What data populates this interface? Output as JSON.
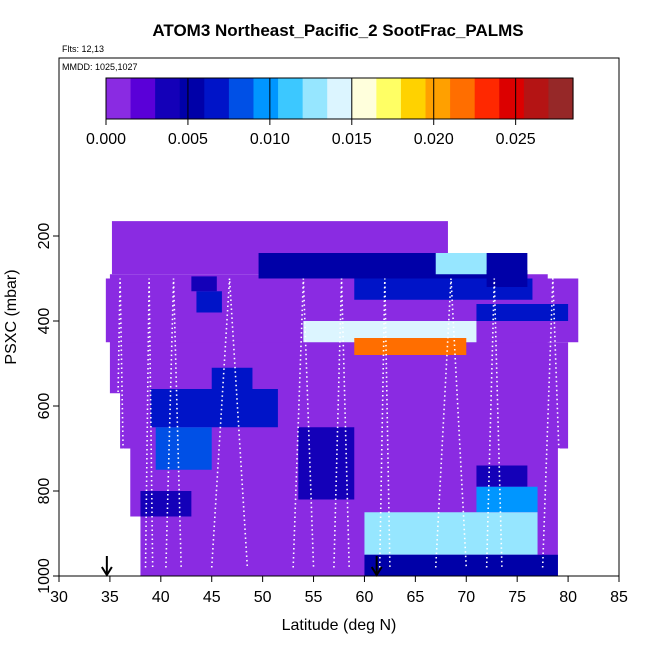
{
  "chart_data": {
    "type": "heatmap",
    "title": "ATOM3 Northeast_Pacific_2 SootFrac_PALMS",
    "flights_label": "Flts: 12,13",
    "mmdd_label": "MMDD: 1025,1027",
    "xlabel": "Latitude (deg N)",
    "ylabel": "PSXC (mbar)",
    "xlim": [
      30,
      85
    ],
    "ylim": [
      1000,
      50
    ],
    "x_ticks": [
      "30",
      "35",
      "40",
      "45",
      "50",
      "55",
      "60",
      "65",
      "70",
      "75",
      "80",
      "85"
    ],
    "x_tick_values": [
      30,
      35,
      40,
      45,
      50,
      55,
      60,
      65,
      70,
      75,
      80,
      85
    ],
    "y_ticks": [
      "200",
      "400",
      "600",
      "800",
      "1000"
    ],
    "y_tick_values": [
      200,
      400,
      600,
      800,
      1000
    ],
    "colorbar": {
      "range": [
        0,
        0.0285
      ],
      "tick_labels": [
        "0.000",
        "0.005",
        "0.010",
        "0.015",
        "0.020",
        "0.025"
      ],
      "tick_values": [
        0,
        0.005,
        0.01,
        0.015,
        0.02,
        0.025
      ],
      "colors": [
        "#8a2be2",
        "#5a00d8",
        "#1400b8",
        "#0000a8",
        "#0014c8",
        "#0050e6",
        "#0096ff",
        "#3cc8ff",
        "#96e6ff",
        "#dcf5ff",
        "#ffffdc",
        "#ffff64",
        "#ffd200",
        "#ffa000",
        "#ff6e00",
        "#ff2800",
        "#dc0000",
        "#b41414",
        "#962828"
      ]
    },
    "markers": [
      {
        "x": 34.7,
        "label": "arrow"
      },
      {
        "x": 61.2,
        "label": "arrow"
      }
    ],
    "background_value": 0.0,
    "cells": [
      {
        "x0": 35.2,
        "x1": 68.2,
        "p0": 165,
        "p1": 290,
        "v": 0.0
      },
      {
        "x0": 35.0,
        "x1": 78.0,
        "p0": 290,
        "p1": 570,
        "v": 0.0
      },
      {
        "x0": 34.6,
        "x1": 81.0,
        "p0": 300,
        "p1": 450,
        "v": 0.0
      },
      {
        "x0": 36.0,
        "x1": 80.0,
        "p0": 450,
        "p1": 700,
        "v": 0.0
      },
      {
        "x0": 37.0,
        "x1": 79.0,
        "p0": 700,
        "p1": 860,
        "v": 0.0
      },
      {
        "x0": 38.0,
        "x1": 79.0,
        "p0": 860,
        "p1": 1000,
        "v": 0.0
      },
      {
        "x0": 43.0,
        "x1": 45.5,
        "p0": 295,
        "p1": 330,
        "v": 0.004
      },
      {
        "x0": 43.5,
        "x1": 46.0,
        "p0": 330,
        "p1": 380,
        "v": 0.006
      },
      {
        "x0": 49.6,
        "x1": 76.0,
        "p0": 240,
        "p1": 300,
        "v": 0.005
      },
      {
        "x0": 59.0,
        "x1": 76.5,
        "p0": 300,
        "p1": 350,
        "v": 0.007
      },
      {
        "x0": 67.0,
        "x1": 72.0,
        "p0": 240,
        "p1": 290,
        "v": 0.012
      },
      {
        "x0": 72.0,
        "x1": 76.0,
        "p0": 280,
        "p1": 320,
        "v": 0.005
      },
      {
        "x0": 71.0,
        "x1": 80.0,
        "p0": 360,
        "p1": 400,
        "v": 0.006
      },
      {
        "x0": 54.0,
        "x1": 71.0,
        "p0": 400,
        "p1": 450,
        "v": 0.014
      },
      {
        "x0": 59.0,
        "x1": 70.0,
        "p0": 440,
        "p1": 480,
        "v": 0.022
      },
      {
        "x0": 45.0,
        "x1": 49.0,
        "p0": 510,
        "p1": 560,
        "v": 0.006
      },
      {
        "x0": 39.0,
        "x1": 51.5,
        "p0": 560,
        "p1": 650,
        "v": 0.006
      },
      {
        "x0": 39.5,
        "x1": 45.0,
        "p0": 650,
        "p1": 750,
        "v": 0.008
      },
      {
        "x0": 53.5,
        "x1": 59.0,
        "p0": 650,
        "p1": 820,
        "v": 0.004
      },
      {
        "x0": 71.0,
        "x1": 76.0,
        "p0": 740,
        "p1": 790,
        "v": 0.004
      },
      {
        "x0": 71.0,
        "x1": 77.0,
        "p0": 790,
        "p1": 850,
        "v": 0.01
      },
      {
        "x0": 60.0,
        "x1": 77.0,
        "p0": 850,
        "p1": 950,
        "v": 0.012
      },
      {
        "x0": 60.0,
        "x1": 79.0,
        "p0": 950,
        "p1": 1000,
        "v": 0.005
      },
      {
        "x0": 38.0,
        "x1": 43.0,
        "p0": 800,
        "p1": 860,
        "v": 0.004
      }
    ]
  }
}
